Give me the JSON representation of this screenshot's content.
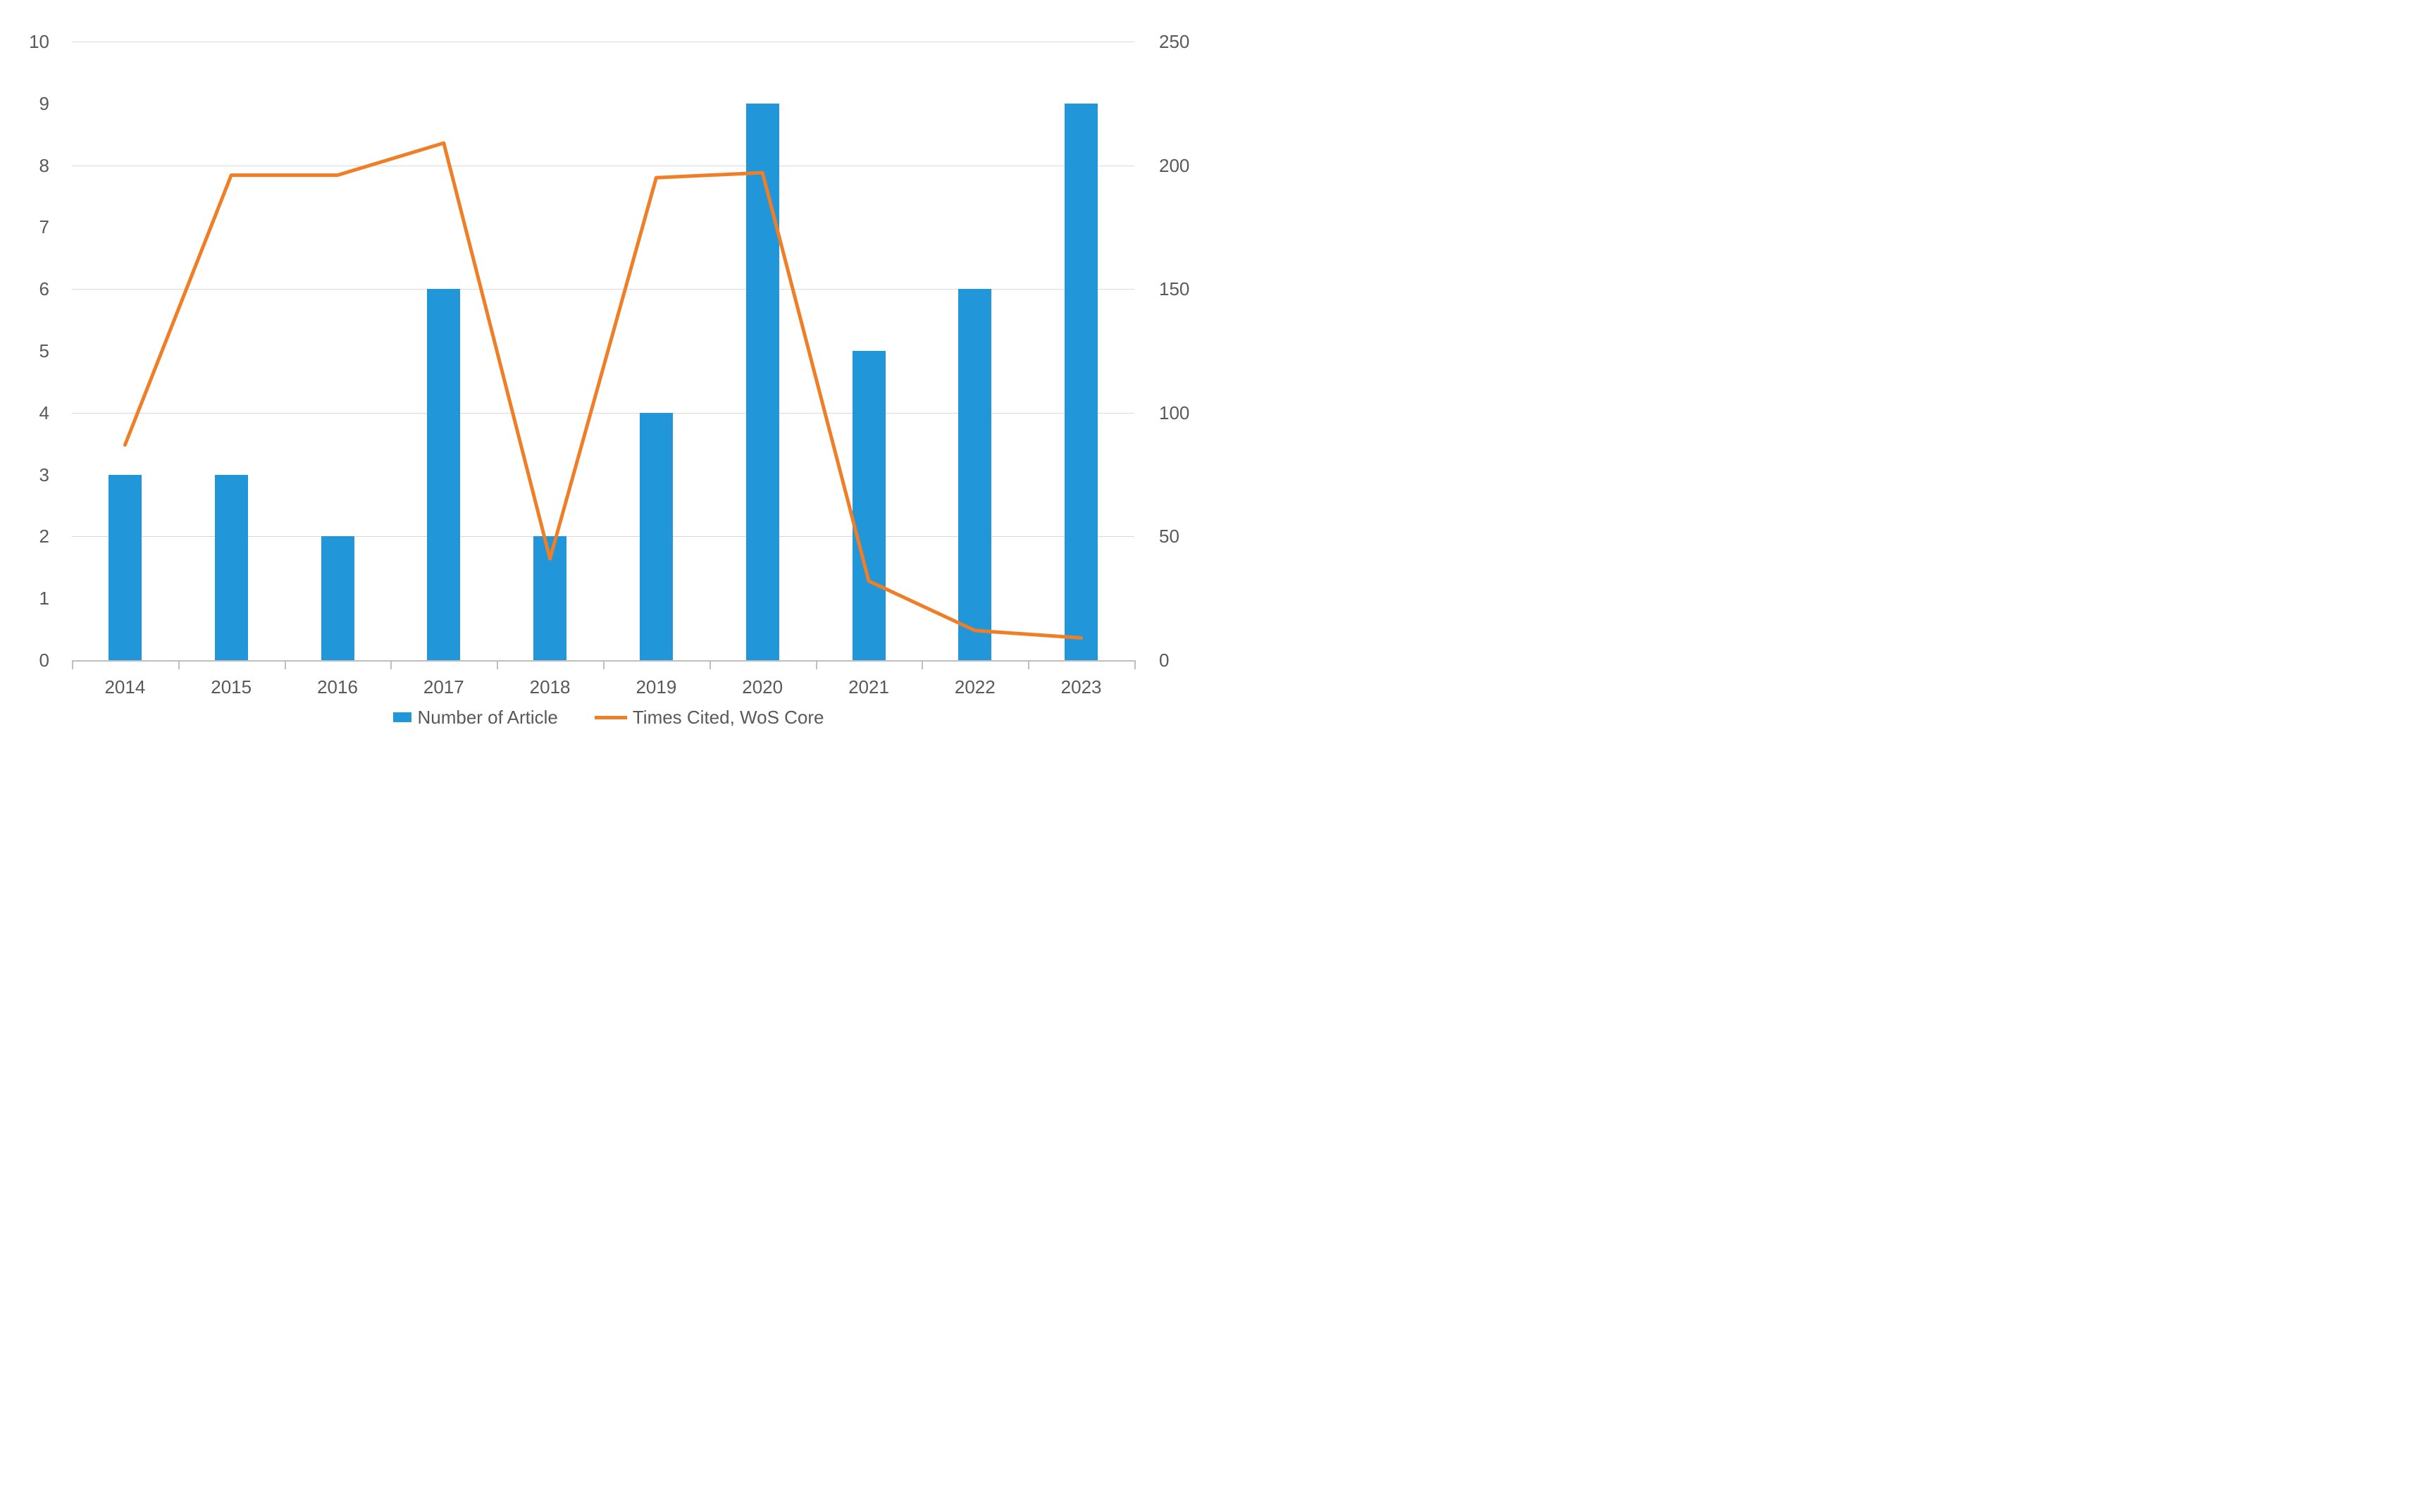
{
  "chart_data": {
    "type": "combo",
    "categories": [
      "2014",
      "2015",
      "2016",
      "2017",
      "2018",
      "2019",
      "2020",
      "2021",
      "2022",
      "2023"
    ],
    "series": [
      {
        "name": "Number of Article",
        "type": "bar",
        "axis": "left",
        "color": "#2196d9",
        "values": [
          3,
          3,
          2,
          6,
          2,
          4,
          9,
          5,
          6,
          9
        ]
      },
      {
        "name": "Times Cited, WoS Core",
        "type": "line",
        "axis": "right",
        "color": "#f07e27",
        "values": [
          87,
          196,
          196,
          209,
          41,
          195,
          197,
          32,
          12,
          9
        ]
      }
    ],
    "title": "",
    "xlabel": "",
    "ylabel": "",
    "left_axis": {
      "min": 0,
      "max": 10,
      "tick_interval": 1,
      "tick_labels": [
        "0",
        "1",
        "2",
        "3",
        "4",
        "5",
        "6",
        "7",
        "8",
        "9",
        "10"
      ]
    },
    "right_axis": {
      "min": 0,
      "max": 250,
      "tick_interval": 50,
      "tick_labels": [
        "0",
        "50",
        "100",
        "150",
        "200",
        "250"
      ]
    },
    "gridlines": {
      "orientation": "horizontal",
      "at_right_axis_values": [
        0,
        50,
        100,
        150,
        200,
        250
      ],
      "color": "#d9d9d9"
    },
    "legend_position": "bottom"
  },
  "legend": {
    "items": [
      {
        "label": "Number of Article",
        "swatch": "bar-swatch"
      },
      {
        "label": "Times Cited, WoS Core",
        "swatch": "line-swatch"
      }
    ]
  },
  "colors": {
    "bar": "#2196d9",
    "line": "#f07e27",
    "gridline": "#d9d9d9",
    "axis_line": "#bfbfbf",
    "label_text": "#595959",
    "background": "#ffffff"
  }
}
